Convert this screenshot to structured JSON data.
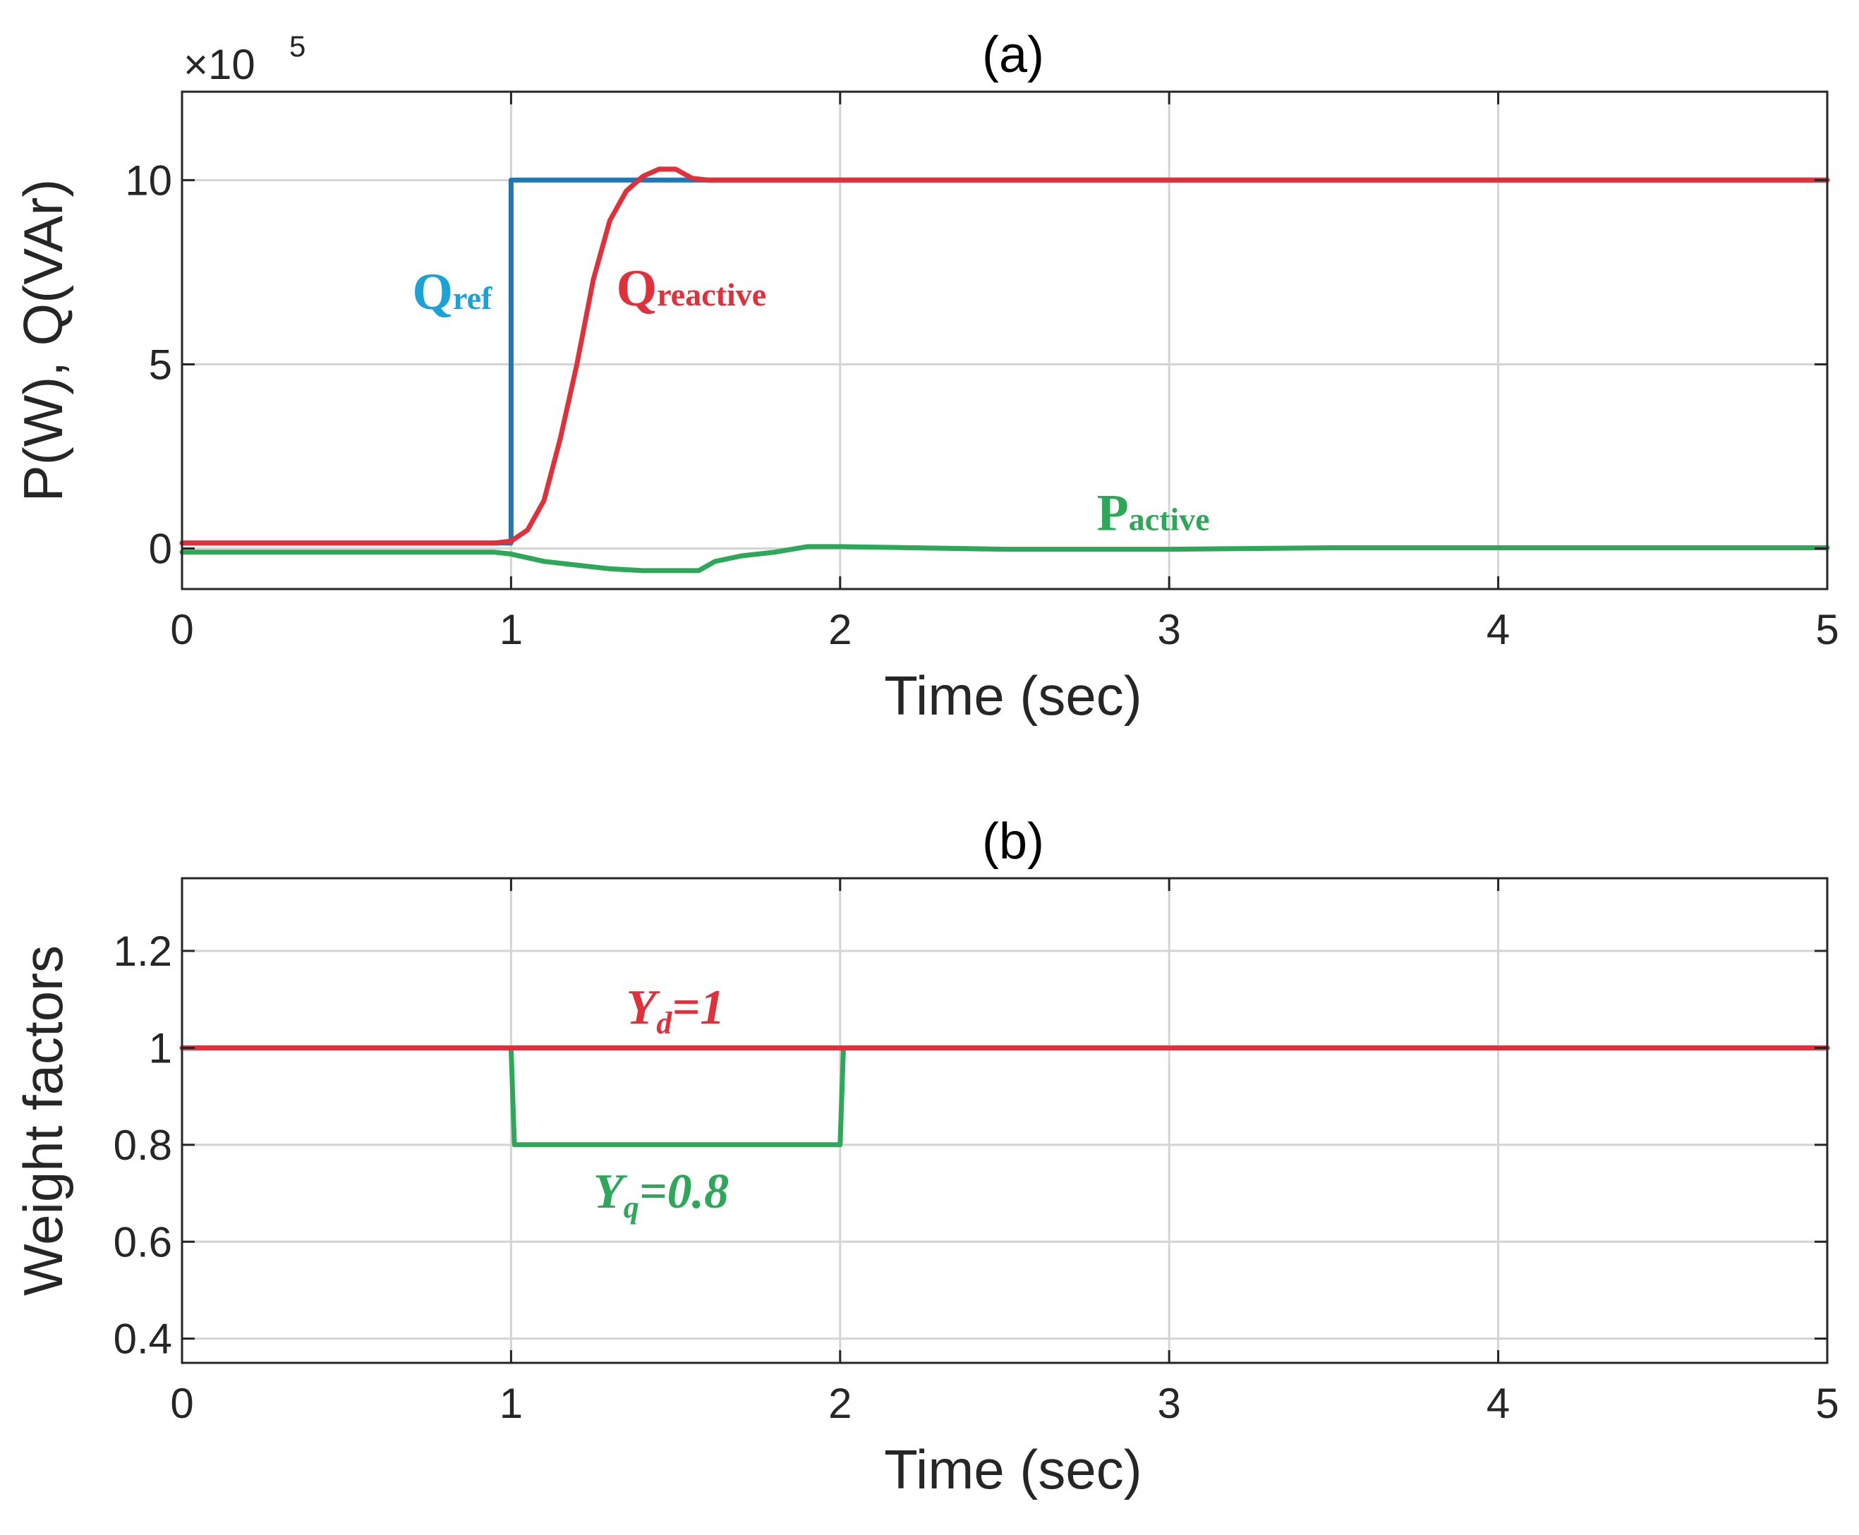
{
  "chart_data": [
    {
      "type": "line",
      "title": "(a)",
      "xlabel": "Time (sec)",
      "ylabel": "P(W), Q(VAr)",
      "exponent_label": "×10",
      "exponent_power": "5",
      "xlim": [
        0,
        5
      ],
      "ylim": [
        -1.1,
        12.4
      ],
      "xticks": [
        "0",
        "1",
        "2",
        "3",
        "4",
        "5"
      ],
      "yticks": [
        "0",
        "5",
        "10"
      ],
      "grid": true,
      "series": [
        {
          "name": "Qref",
          "color": "#1f77b4",
          "x": [
            0,
            1.0,
            1.0,
            5.0
          ],
          "y": [
            0.15,
            0.15,
            10.0,
            10.0
          ]
        },
        {
          "name": "Qreactive",
          "color": "#e0303a",
          "x": [
            0,
            0.95,
            1.0,
            1.05,
            1.1,
            1.15,
            1.2,
            1.25,
            1.3,
            1.35,
            1.4,
            1.45,
            1.5,
            1.55,
            1.6,
            2.0,
            3.0,
            4.0,
            5.0
          ],
          "y": [
            0.15,
            0.15,
            0.2,
            0.5,
            1.3,
            3.0,
            5.0,
            7.3,
            8.9,
            9.7,
            10.1,
            10.3,
            10.3,
            10.05,
            10.0,
            10.0,
            10.0,
            10.0,
            10.0
          ]
        },
        {
          "name": "Pactive",
          "color": "#2ca858",
          "x": [
            0,
            0.95,
            1.0,
            1.1,
            1.2,
            1.3,
            1.4,
            1.5,
            1.57,
            1.62,
            1.7,
            1.8,
            1.9,
            2.0,
            2.5,
            3.0,
            3.5,
            4.0,
            4.5,
            5.0
          ],
          "y": [
            -0.1,
            -0.1,
            -0.15,
            -0.35,
            -0.45,
            -0.55,
            -0.6,
            -0.6,
            -0.6,
            -0.35,
            -0.2,
            -0.1,
            0.05,
            0.05,
            -0.02,
            -0.02,
            0.02,
            0.02,
            0.02,
            0.02
          ]
        }
      ],
      "annotations": [
        {
          "main": "Q",
          "sub": "ref",
          "color": "#1aa3d9",
          "x": 0.7,
          "y": 6.5
        },
        {
          "main": "Q",
          "sub": "reactive",
          "color": "#e0303a",
          "x": 1.32,
          "y": 6.6
        },
        {
          "main": "P",
          "sub": "active",
          "color": "#2ca858",
          "x": 2.78,
          "y": 0.5
        }
      ]
    },
    {
      "type": "line",
      "title": "(b)",
      "xlabel": "Time (sec)",
      "ylabel": "Weight factors",
      "xlim": [
        0,
        5
      ],
      "ylim": [
        0.35,
        1.35
      ],
      "xticks": [
        "0",
        "1",
        "2",
        "3",
        "4",
        "5"
      ],
      "yticks": [
        "0.4",
        "0.6",
        "0.8",
        "1",
        "1.2"
      ],
      "grid": true,
      "series": [
        {
          "name": "Yq=0.8",
          "color": "#2ca858",
          "x": [
            0,
            1.0,
            1.01,
            2.0,
            2.01,
            5.0
          ],
          "y": [
            1.0,
            1.0,
            0.8,
            0.8,
            1.0,
            1.0
          ]
        },
        {
          "name": "Yd=1",
          "color": "#e0303a",
          "x": [
            0,
            5.0
          ],
          "y": [
            1.0,
            1.0
          ]
        }
      ],
      "annotations": [
        {
          "main": "Y",
          "sub": "d",
          "tail": "=1",
          "color": "#e0303a",
          "x": 1.35,
          "y": 1.05
        },
        {
          "main": "Y",
          "sub": "q",
          "tail": "=0.8",
          "color": "#2ca858",
          "x": 1.25,
          "y": 0.67
        }
      ]
    }
  ]
}
